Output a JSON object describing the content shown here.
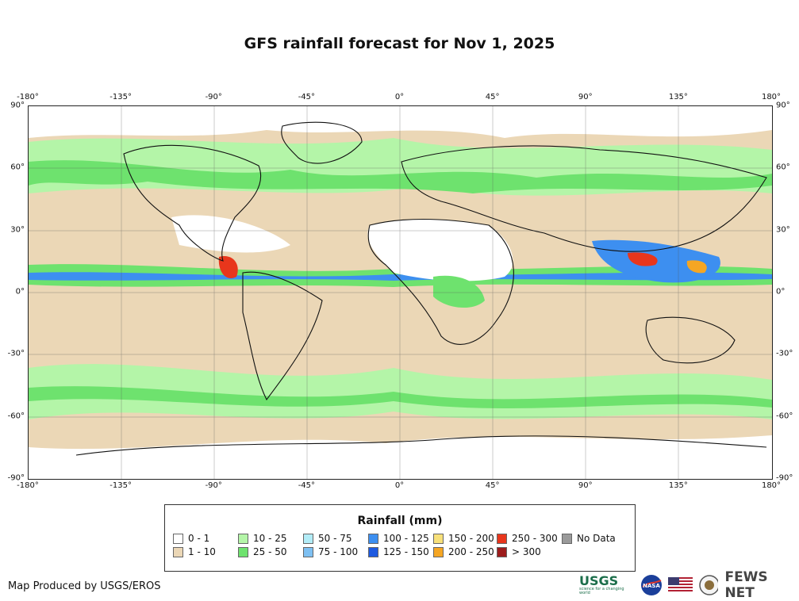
{
  "title": "GFS rainfall forecast for Nov 1, 2025",
  "axes": {
    "lon_ticks": [
      "-180°",
      "-135°",
      "-90°",
      "-45°",
      "0°",
      "45°",
      "90°",
      "135°",
      "180°"
    ],
    "lat_ticks": [
      "90°",
      "60°",
      "30°",
      "0°",
      "-30°",
      "-60°",
      "-90°"
    ]
  },
  "legend": {
    "title": "Rainfall (mm)",
    "items": [
      {
        "label": "0 - 1",
        "color": "#ffffff"
      },
      {
        "label": "1 - 10",
        "color": "#ebd7b6"
      },
      {
        "label": "10 - 25",
        "color": "#b4f5a8"
      },
      {
        "label": "25 - 50",
        "color": "#6ee26e"
      },
      {
        "label": "50 - 75",
        "color": "#b2ecf7"
      },
      {
        "label": "75 - 100",
        "color": "#7ec0f2"
      },
      {
        "label": "100 - 125",
        "color": "#3d8ff0"
      },
      {
        "label": "125 - 150",
        "color": "#1e5ae0"
      },
      {
        "label": "150 - 200",
        "color": "#f7e07a"
      },
      {
        "label": "200 - 250",
        "color": "#f5a623"
      },
      {
        "label": "250 - 300",
        "color": "#e8361c"
      },
      {
        "label": "> 300",
        "color": "#9c1c1c"
      },
      {
        "label": "No Data",
        "color": "#9a9a9a"
      }
    ]
  },
  "credit": "Map Produced by USGS/EROS",
  "logos": {
    "usgs": "USGS",
    "usgs_tagline": "science for a changing world",
    "nasa": "NASA",
    "fews": "FEWS NET",
    "icons": [
      "usgs-logo-icon",
      "nasa-logo-icon",
      "us-flag-icon",
      "state-dept-seal-icon"
    ]
  }
}
